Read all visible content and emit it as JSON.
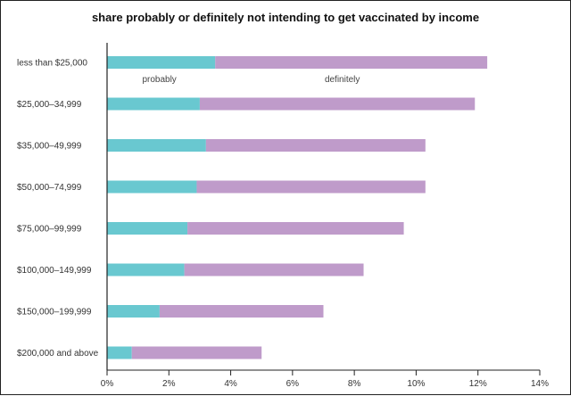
{
  "chart_data": {
    "type": "bar",
    "orientation": "horizontal",
    "stacked": true,
    "title": "share probably or definitely not intending to get vaccinated by income",
    "categories": [
      "less than $25,000",
      "$25,000–34,999",
      "$35,000–49,999",
      "$50,000–74,999",
      "$75,000–99,999",
      "$100,000–149,999",
      "$150,000–199,999",
      "$200,000 and above"
    ],
    "series": [
      {
        "name": "probably",
        "color": "#69c8d0",
        "values": [
          3.5,
          3.0,
          3.2,
          2.9,
          2.6,
          2.5,
          1.7,
          0.8
        ]
      },
      {
        "name": "definitely",
        "color": "#bf9bca",
        "values": [
          8.8,
          8.9,
          7.1,
          7.4,
          7.0,
          5.8,
          5.3,
          4.2
        ]
      }
    ],
    "xlim": [
      0,
      14
    ],
    "xticks": [
      0,
      2,
      4,
      6,
      8,
      10,
      12,
      14
    ],
    "tick_labels": [
      "0%",
      "2%",
      "4%",
      "6%",
      "8%",
      "10%",
      "12%",
      "14%"
    ],
    "xlabel": "",
    "ylabel": "",
    "grid": false,
    "legend": "inline labels under first bar"
  }
}
